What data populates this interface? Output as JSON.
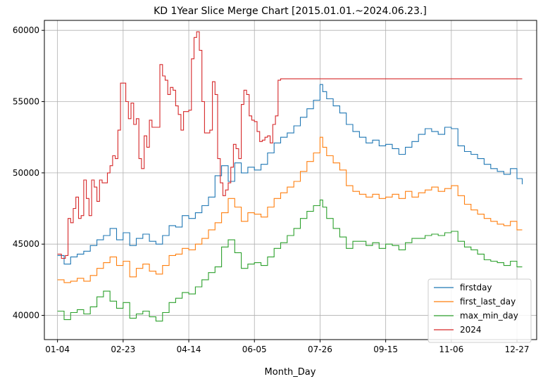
{
  "chart_data": {
    "type": "line",
    "title": "KD 1Year Slice Merge Chart [2015.01.01.~2024.06.23.]",
    "xlabel": "Month_Day",
    "ylabel": "",
    "xlim": [
      -10,
      365
    ],
    "ylim": [
      38300,
      60700
    ],
    "x_ticks": [
      {
        "pos": 0,
        "label": "01-04"
      },
      {
        "pos": 50,
        "label": "02-23"
      },
      {
        "pos": 100,
        "label": "04-14"
      },
      {
        "pos": 150,
        "label": "06-05"
      },
      {
        "pos": 200,
        "label": "07-26"
      },
      {
        "pos": 250,
        "label": "09-15"
      },
      {
        "pos": 300,
        "label": "11-06"
      },
      {
        "pos": 350,
        "label": "12-27"
      }
    ],
    "y_ticks": [
      40000,
      45000,
      50000,
      55000,
      60000
    ],
    "grid": true,
    "legend_position": "lower-right",
    "series": [
      {
        "name": "firstday",
        "color": "#1f77b4",
        "x": [
          0,
          5,
          10,
          15,
          20,
          25,
          30,
          35,
          40,
          45,
          50,
          55,
          60,
          65,
          70,
          75,
          80,
          85,
          90,
          95,
          100,
          105,
          110,
          115,
          120,
          125,
          130,
          135,
          140,
          145,
          150,
          155,
          160,
          165,
          170,
          175,
          180,
          185,
          190,
          195,
          200,
          202,
          205,
          210,
          215,
          220,
          225,
          230,
          235,
          240,
          245,
          250,
          255,
          260,
          265,
          270,
          275,
          280,
          285,
          290,
          295,
          300,
          305,
          310,
          315,
          320,
          325,
          330,
          335,
          340,
          345,
          350,
          354
        ],
        "values": [
          44200,
          43600,
          44100,
          44300,
          44500,
          44900,
          45300,
          45600,
          46100,
          45300,
          45800,
          44900,
          45400,
          45700,
          45200,
          45000,
          45600,
          46300,
          46200,
          47000,
          46800,
          47200,
          47700,
          48300,
          49800,
          50500,
          49400,
          50700,
          50000,
          50400,
          50200,
          50600,
          51400,
          52100,
          52500,
          52800,
          53300,
          53900,
          54500,
          55100,
          56200,
          55700,
          55200,
          54700,
          54200,
          53400,
          52900,
          52500,
          52100,
          52300,
          51900,
          52000,
          51700,
          51300,
          51800,
          52200,
          52700,
          53100,
          52900,
          52700,
          53200,
          53100,
          51900,
          51500,
          51300,
          51000,
          50600,
          50300,
          50100,
          49900,
          50300,
          49600,
          49200
        ]
      },
      {
        "name": "first_last_day",
        "color": "#ff7f0e",
        "x": [
          0,
          5,
          10,
          15,
          20,
          25,
          30,
          35,
          40,
          45,
          50,
          55,
          60,
          65,
          70,
          75,
          80,
          85,
          90,
          95,
          100,
          105,
          110,
          115,
          120,
          125,
          130,
          135,
          140,
          145,
          150,
          155,
          160,
          165,
          170,
          175,
          180,
          185,
          190,
          195,
          200,
          202,
          205,
          210,
          215,
          220,
          225,
          230,
          235,
          240,
          245,
          250,
          255,
          260,
          265,
          270,
          275,
          280,
          285,
          290,
          295,
          300,
          305,
          310,
          315,
          320,
          325,
          330,
          335,
          340,
          345,
          350,
          354
        ],
        "values": [
          42500,
          42300,
          42400,
          42600,
          42400,
          42800,
          43300,
          43700,
          44100,
          43500,
          43800,
          42700,
          43300,
          43600,
          43100,
          42900,
          43500,
          44200,
          44300,
          44700,
          44600,
          45000,
          45400,
          46000,
          46500,
          47200,
          48200,
          47600,
          46600,
          47200,
          47100,
          46900,
          47600,
          48200,
          48600,
          49000,
          49400,
          50100,
          50800,
          51400,
          52500,
          51800,
          51200,
          50700,
          50200,
          49100,
          48700,
          48500,
          48300,
          48500,
          48200,
          48300,
          48500,
          48200,
          48700,
          48300,
          48600,
          48800,
          49000,
          48700,
          48900,
          49100,
          48400,
          47800,
          47400,
          47100,
          46800,
          46600,
          46400,
          46300,
          46600,
          46000,
          46000
        ]
      },
      {
        "name": "max_min_day",
        "color": "#2ca02c",
        "x": [
          0,
          5,
          10,
          15,
          20,
          25,
          30,
          35,
          40,
          45,
          50,
          55,
          60,
          65,
          70,
          75,
          80,
          85,
          90,
          95,
          100,
          105,
          110,
          115,
          120,
          125,
          130,
          135,
          140,
          145,
          150,
          155,
          160,
          165,
          170,
          175,
          180,
          185,
          190,
          195,
          200,
          202,
          205,
          210,
          215,
          220,
          225,
          230,
          235,
          240,
          245,
          250,
          255,
          260,
          265,
          270,
          275,
          280,
          285,
          290,
          295,
          300,
          305,
          310,
          315,
          320,
          325,
          330,
          335,
          340,
          345,
          350,
          354
        ],
        "values": [
          40300,
          39700,
          40200,
          40400,
          40100,
          40600,
          41300,
          41700,
          41000,
          40500,
          40900,
          39800,
          40100,
          40300,
          39900,
          39600,
          40200,
          40900,
          41200,
          41600,
          41500,
          42000,
          42500,
          43000,
          43400,
          44800,
          45300,
          44400,
          43300,
          43600,
          43700,
          43500,
          44100,
          44700,
          45100,
          45600,
          46100,
          46800,
          47300,
          47700,
          48100,
          47600,
          46800,
          46100,
          45500,
          44700,
          45200,
          45200,
          44900,
          45100,
          44700,
          45000,
          44900,
          44600,
          45100,
          45400,
          45400,
          45600,
          45700,
          45600,
          45800,
          45900,
          45200,
          44800,
          44600,
          44300,
          43900,
          43800,
          43700,
          43500,
          43800,
          43400,
          43400
        ]
      },
      {
        "name": "2024",
        "color": "#d62728",
        "x": [
          0,
          3,
          6,
          8,
          10,
          12,
          14,
          16,
          18,
          20,
          22,
          24,
          26,
          28,
          30,
          32,
          34,
          36,
          38,
          40,
          42,
          44,
          46,
          48,
          50,
          52,
          54,
          56,
          58,
          60,
          62,
          64,
          66,
          68,
          70,
          72,
          74,
          76,
          78,
          80,
          82,
          84,
          86,
          88,
          90,
          92,
          94,
          96,
          98,
          100,
          102,
          104,
          106,
          108,
          110,
          112,
          114,
          116,
          118,
          120,
          122,
          124,
          126,
          128,
          130,
          132,
          134,
          136,
          138,
          140,
          142,
          144,
          146,
          148,
          150,
          152,
          154,
          156,
          158,
          160,
          162,
          164,
          166,
          168,
          170,
          172,
          354
        ],
        "values": [
          44300,
          44000,
          44200,
          46800,
          46500,
          47500,
          48300,
          46800,
          47000,
          49500,
          48200,
          47000,
          49500,
          49000,
          48000,
          49500,
          49300,
          49300,
          50000,
          50500,
          51200,
          51000,
          53000,
          56300,
          56300,
          55000,
          53800,
          54900,
          53400,
          53800,
          51000,
          50300,
          52600,
          51800,
          53700,
          53200,
          53200,
          53200,
          57600,
          56800,
          56500,
          55500,
          56000,
          55800,
          54700,
          54100,
          53000,
          54300,
          54300,
          54400,
          58000,
          59500,
          59900,
          58600,
          55000,
          52800,
          52800,
          53000,
          56400,
          55500,
          51000,
          49300,
          48400,
          48800,
          49300,
          50400,
          52000,
          51700,
          51000,
          54800,
          55800,
          55500,
          54000,
          53700,
          53600,
          52900,
          52200,
          52300,
          52500,
          52600,
          52100,
          53400,
          54000,
          56500,
          56600,
          56600,
          56600
        ]
      }
    ]
  }
}
